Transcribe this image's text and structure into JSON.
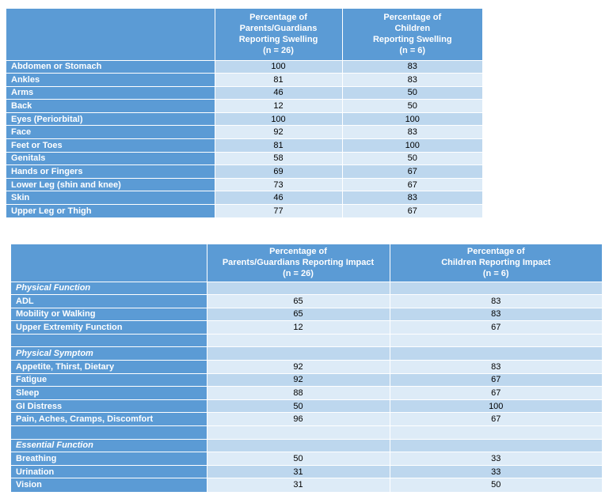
{
  "table1": {
    "headers": [
      "",
      "Percentage of\nParents/Guardians\nReporting Swelling\n(n = 26)",
      "Percentage of\nChildren\nReporting Swelling\n(n = 6)"
    ],
    "rows": [
      {
        "label": "Abdomen or Stomach",
        "parents": "100",
        "children": "83"
      },
      {
        "label": "Ankles",
        "parents": "81",
        "children": "83"
      },
      {
        "label": "Arms",
        "parents": "46",
        "children": "50"
      },
      {
        "label": "Back",
        "parents": "12",
        "children": "50"
      },
      {
        "label": "Eyes (Periorbital)",
        "parents": "100",
        "children": "100"
      },
      {
        "label": "Face",
        "parents": "92",
        "children": "83"
      },
      {
        "label": "Feet or Toes",
        "parents": "81",
        "children": "100"
      },
      {
        "label": "Genitals",
        "parents": "58",
        "children": "50"
      },
      {
        "label": "Hands or Fingers",
        "parents": "69",
        "children": "67"
      },
      {
        "label": "Lower Leg (shin and knee)",
        "parents": "73",
        "children": "67"
      },
      {
        "label": "Skin",
        "parents": "46",
        "children": "83"
      },
      {
        "label": "Upper Leg or Thigh",
        "parents": "77",
        "children": "67"
      }
    ]
  },
  "table2": {
    "headers": [
      "",
      "Percentage of\nParents/Guardians Reporting Impact\n(n = 26)",
      "Percentage of\nChildren Reporting Impact\n(n = 6)"
    ],
    "rows": [
      {
        "type": "section",
        "label": "Physical Function"
      },
      {
        "type": "data",
        "label": "ADL",
        "parents": "65",
        "children": "83"
      },
      {
        "type": "data",
        "label": "Mobility or Walking",
        "parents": "65",
        "children": "83"
      },
      {
        "type": "data",
        "label": "Upper Extremity Function",
        "parents": "12",
        "children": "67"
      },
      {
        "type": "blank"
      },
      {
        "type": "section",
        "label": "Physical Symptom"
      },
      {
        "type": "data",
        "label": "Appetite, Thirst, Dietary",
        "parents": "92",
        "children": "83"
      },
      {
        "type": "data",
        "label": "Fatigue",
        "parents": "92",
        "children": "67"
      },
      {
        "type": "data",
        "label": "Sleep",
        "parents": "88",
        "children": "67"
      },
      {
        "type": "data",
        "label": "GI Distress",
        "parents": "50",
        "children": "100"
      },
      {
        "type": "data",
        "label": "Pain, Aches, Cramps, Discomfort",
        "parents": "96",
        "children": "67"
      },
      {
        "type": "blank"
      },
      {
        "type": "section",
        "label": "Essential Function"
      },
      {
        "type": "data",
        "label": "Breathing",
        "parents": "50",
        "children": "33"
      },
      {
        "type": "data",
        "label": "Urination",
        "parents": "31",
        "children": "33"
      },
      {
        "type": "data",
        "label": "Vision",
        "parents": "31",
        "children": "50"
      }
    ]
  }
}
